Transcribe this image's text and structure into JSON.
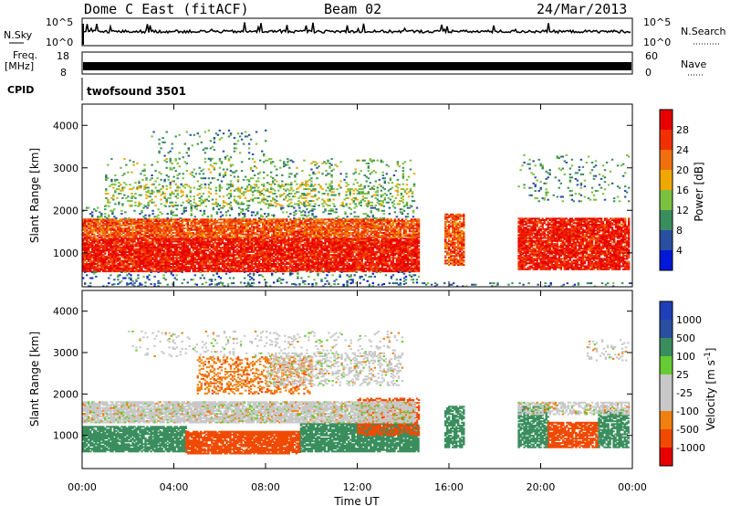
{
  "header": {
    "station": "Dome C East (fitACF)",
    "beam": "Beam 02",
    "date": "24/Mar/2013"
  },
  "params": {
    "nsky_label": "N.Sky",
    "nsearch_label": "N.Search",
    "nsky_ticks": [
      "10^5",
      "10^0"
    ],
    "nsearch_ticks": [
      "10^5",
      "10^0"
    ],
    "freq_label": "Freq.",
    "freq_unit": "[MHz]",
    "freq_ticks": [
      "18",
      "8"
    ],
    "nave_label": "Nave",
    "nave_ticks": [
      "60",
      "0"
    ],
    "cpid_label": "CPID",
    "cpid_value": "twofsound 3501"
  },
  "colors": {
    "power": [
      "#0018d8",
      "#2a4ea0",
      "#3a8e5e",
      "#7cc040",
      "#f0a800",
      "#f07010",
      "#f03000",
      "#e80000"
    ],
    "velocity": [
      "#e80000",
      "#f04a00",
      "#f08010",
      "#c8c8c8",
      "#c8c8c8",
      "#66cc33",
      "#3a8e5e",
      "#2a4ea0",
      "#1f3fb8"
    ]
  },
  "chart_data": [
    {
      "type": "heatmap",
      "name": "power",
      "xlabel": "",
      "ylabel": "Slant Range [km]",
      "ylim": [
        200,
        4500
      ],
      "yticks": [
        "1000",
        "2000",
        "3000",
        "4000"
      ],
      "colorbar": {
        "label": "Power [dB]",
        "ticks": [
          "28",
          "24",
          "20",
          "16",
          "12",
          "8",
          "4"
        ],
        "range": [
          0,
          32
        ]
      },
      "regions": [
        {
          "t0": 0.0,
          "t1": 14.7,
          "r0": 550,
          "r1": 1350,
          "value": 28,
          "density": 0.9
        },
        {
          "t0": 0.0,
          "t1": 14.7,
          "r0": 1350,
          "r1": 1800,
          "value": 24,
          "density": 0.85
        },
        {
          "t0": 0.0,
          "t1": 14.7,
          "r0": 1800,
          "r1": 2100,
          "value": 10,
          "density": 0.15
        },
        {
          "t0": 1.0,
          "t1": 14.5,
          "r0": 2100,
          "r1": 2600,
          "value": 14,
          "density": 0.25
        },
        {
          "t0": 1.0,
          "t1": 14.5,
          "r0": 2600,
          "r1": 3200,
          "value": 12,
          "density": 0.12
        },
        {
          "t0": 3.0,
          "t1": 8.0,
          "r0": 3200,
          "r1": 3900,
          "value": 10,
          "density": 0.07
        },
        {
          "t0": 0.0,
          "t1": 14.7,
          "r0": 250,
          "r1": 550,
          "value": 8,
          "density": 0.12
        },
        {
          "t0": 15.8,
          "t1": 16.6,
          "r0": 700,
          "r1": 1900,
          "value": 24,
          "density": 0.8
        },
        {
          "t0": 19.0,
          "t1": 23.8,
          "r0": 600,
          "r1": 1800,
          "value": 28,
          "density": 0.85
        },
        {
          "t0": 19.0,
          "t1": 23.8,
          "r0": 2200,
          "r1": 3300,
          "value": 10,
          "density": 0.08
        },
        {
          "t0": 0.0,
          "t1": 24.0,
          "r0": 200,
          "r1": 300,
          "value": 8,
          "density": 0.15
        }
      ]
    },
    {
      "type": "heatmap",
      "name": "velocity",
      "xlabel": "Time UT",
      "ylabel": "Slant Range [km]",
      "ylim": [
        200,
        4500
      ],
      "yticks": [
        "1000",
        "2000",
        "3000",
        "4000"
      ],
      "xticks": [
        "00:00",
        "04:00",
        "08:00",
        "12:00",
        "16:00",
        "20:00",
        "00:00"
      ],
      "colorbar": {
        "label": "Velocity [m s^-1]",
        "ticks": [
          "1000",
          "500",
          "100",
          "25",
          "-25",
          "-100",
          "-500",
          "-1000"
        ]
      },
      "regions": [
        {
          "t0": 0.0,
          "t1": 4.5,
          "r0": 600,
          "r1": 1200,
          "value": 180,
          "density": 0.85
        },
        {
          "t0": 4.5,
          "t1": 9.5,
          "r0": 550,
          "r1": 1100,
          "value": -200,
          "density": 0.85
        },
        {
          "t0": 9.5,
          "t1": 14.7,
          "r0": 600,
          "r1": 1300,
          "value": 180,
          "density": 0.85
        },
        {
          "t0": 12.0,
          "t1": 14.7,
          "r0": 1000,
          "r1": 1900,
          "value": -200,
          "density": 0.6
        },
        {
          "t0": 0.0,
          "t1": 14.5,
          "r0": 1300,
          "r1": 1800,
          "value": 0,
          "density": 0.85
        },
        {
          "t0": 5.0,
          "t1": 10.0,
          "r0": 2000,
          "r1": 2900,
          "value": -80,
          "density": 0.35
        },
        {
          "t0": 8.0,
          "t1": 14.0,
          "r0": 2200,
          "r1": 3000,
          "value": 0,
          "density": 0.3
        },
        {
          "t0": 2.0,
          "t1": 14.0,
          "r0": 2900,
          "r1": 3500,
          "value": 0,
          "density": 0.1
        },
        {
          "t0": 15.8,
          "t1": 16.6,
          "r0": 700,
          "r1": 1700,
          "value": 180,
          "density": 0.75
        },
        {
          "t0": 19.0,
          "t1": 20.3,
          "r0": 700,
          "r1": 1700,
          "value": 180,
          "density": 0.75
        },
        {
          "t0": 20.3,
          "t1": 22.5,
          "r0": 700,
          "r1": 1300,
          "value": -200,
          "density": 0.8
        },
        {
          "t0": 22.5,
          "t1": 23.8,
          "r0": 700,
          "r1": 1600,
          "value": 180,
          "density": 0.75
        },
        {
          "t0": 19.0,
          "t1": 23.8,
          "r0": 1500,
          "r1": 1800,
          "value": 0,
          "density": 0.6
        },
        {
          "t0": 22.0,
          "t1": 23.8,
          "r0": 2800,
          "r1": 3300,
          "value": 0,
          "density": 0.2
        }
      ]
    }
  ]
}
